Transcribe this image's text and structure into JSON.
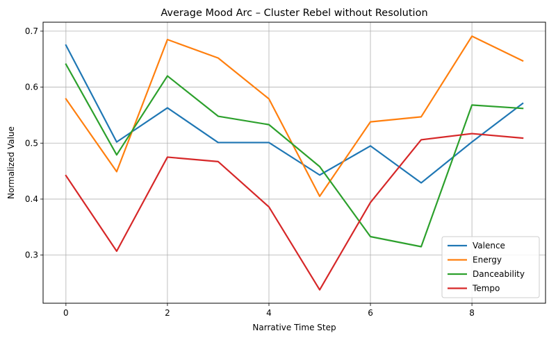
{
  "chart_data": {
    "type": "line",
    "title": "Average Mood Arc – Cluster Rebel without Resolution",
    "xlabel": "Narrative Time Step",
    "ylabel": "Normalized Value",
    "x": [
      0,
      1,
      2,
      3,
      4,
      5,
      6,
      7,
      8,
      9
    ],
    "xlim": [
      -0.45,
      9.45
    ],
    "ylim": [
      0.214,
      0.716
    ],
    "xticks": [
      0,
      2,
      4,
      6,
      8
    ],
    "yticks": [
      0.3,
      0.4,
      0.5,
      0.6,
      0.7
    ],
    "xtick_labels": [
      "0",
      "2",
      "4",
      "6",
      "8"
    ],
    "ytick_labels": [
      "0.3",
      "0.4",
      "0.5",
      "0.6",
      "0.7"
    ],
    "grid": true,
    "legend_position": "lower right",
    "series": [
      {
        "name": "Valence",
        "color": "#1f77b4",
        "values": [
          0.675,
          0.502,
          0.563,
          0.501,
          0.501,
          0.443,
          0.495,
          0.429,
          0.502,
          0.571
        ]
      },
      {
        "name": "Energy",
        "color": "#ff7f0e",
        "values": [
          0.579,
          0.449,
          0.685,
          0.652,
          0.579,
          0.405,
          0.538,
          0.547,
          0.691,
          0.647
        ]
      },
      {
        "name": "Danceability",
        "color": "#2ca02c",
        "values": [
          0.641,
          0.479,
          0.62,
          0.548,
          0.533,
          0.458,
          0.333,
          0.315,
          0.568,
          0.562
        ]
      },
      {
        "name": "Tempo",
        "color": "#d62728",
        "values": [
          0.442,
          0.307,
          0.475,
          0.467,
          0.386,
          0.238,
          0.394,
          0.506,
          0.517,
          0.509
        ]
      }
    ]
  }
}
